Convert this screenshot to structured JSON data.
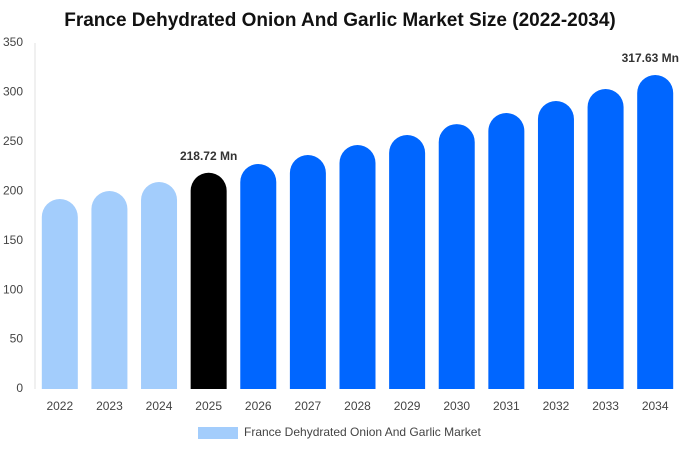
{
  "chart_data": {
    "type": "bar",
    "title": "France Dehydrated Onion And Garlic Market Size (2022-2034)",
    "categories": [
      "2022",
      "2023",
      "2024",
      "2025",
      "2026",
      "2027",
      "2028",
      "2029",
      "2030",
      "2031",
      "2032",
      "2033",
      "2034"
    ],
    "series": [
      {
        "name": "France Dehydrated Onion And Garlic Market",
        "color": "#a3cdfc",
        "values": [
          192.2,
          200.3,
          209.4,
          218.72,
          227.6,
          236.7,
          246.8,
          256.9,
          268,
          279.2,
          291.3,
          303.5,
          317.63
        ],
        "value_labels": [
          null,
          null,
          null,
          "218.72 Mn",
          null,
          null,
          null,
          null,
          null,
          null,
          null,
          null,
          "317.63 Mn"
        ],
        "colors": [
          "#a3cdfc",
          "#a3cdfc",
          "#a3cdfc",
          "#000000",
          "#0066ff",
          "#0066ff",
          "#0066ff",
          "#0066ff",
          "#0066ff",
          "#0066ff",
          "#0066ff",
          "#0066ff",
          "#0066ff"
        ]
      }
    ],
    "ylim": [
      0,
      350
    ],
    "yticks": [
      0,
      50,
      100,
      150,
      200,
      250,
      300,
      350
    ],
    "grid": false,
    "legend": "bottom"
  }
}
